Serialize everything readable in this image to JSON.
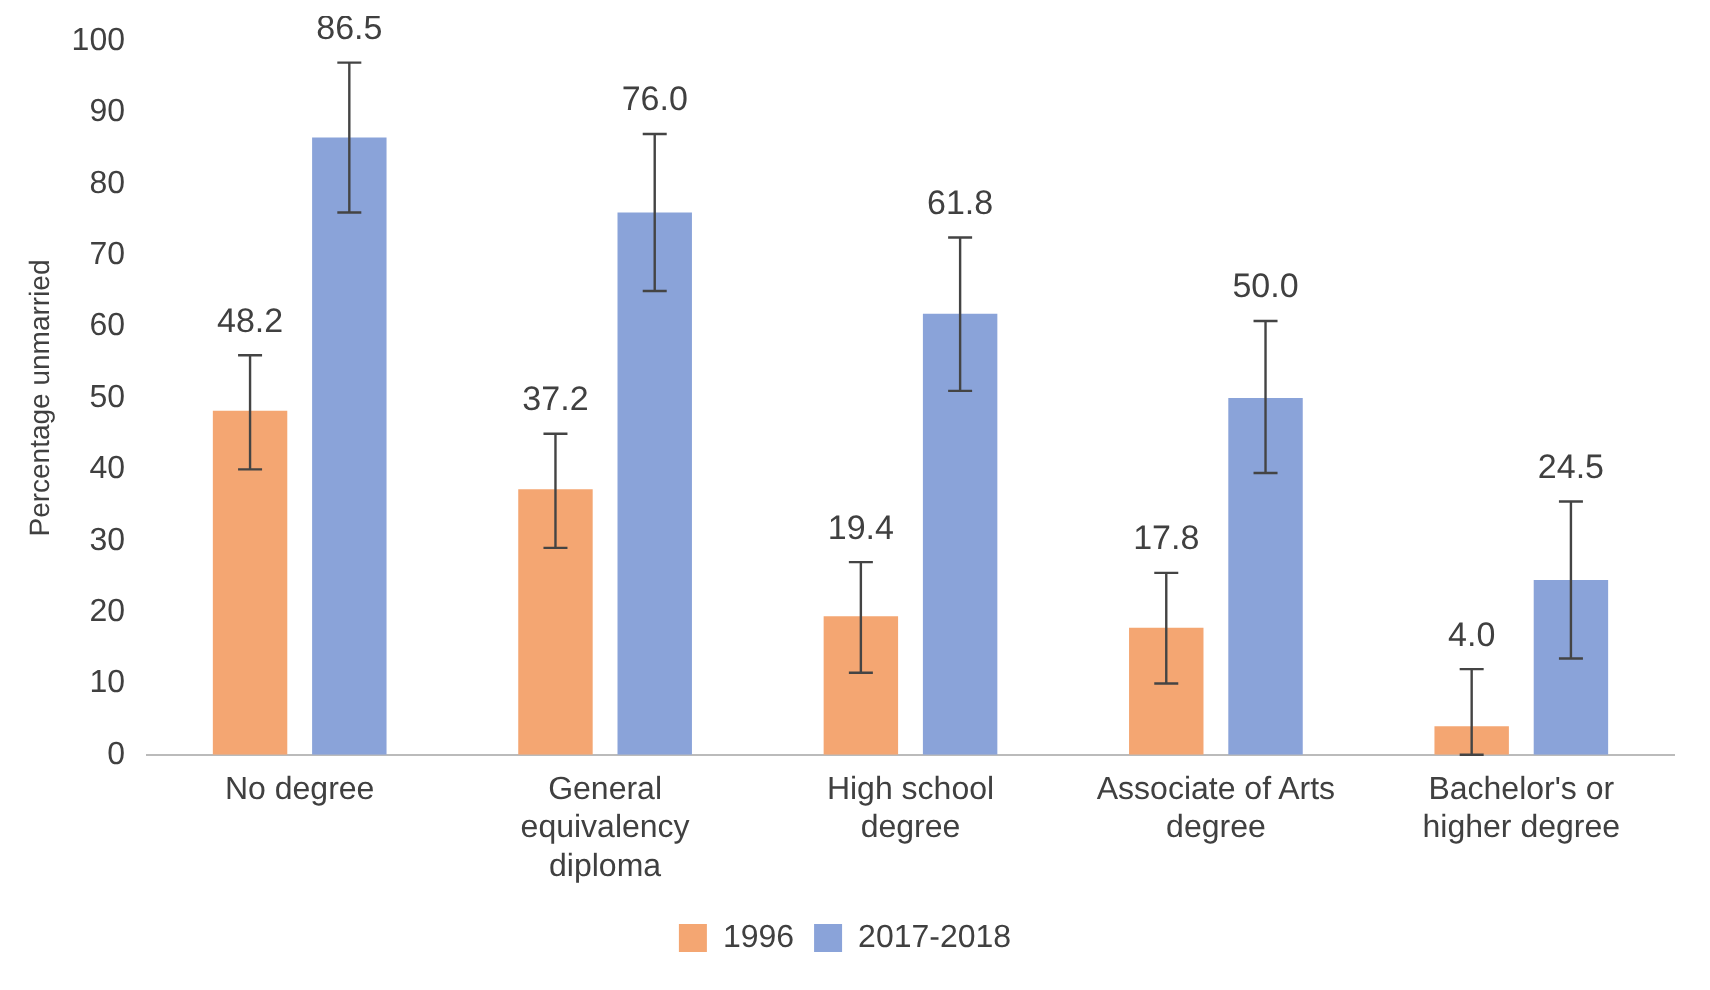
{
  "chart_data": {
    "type": "bar",
    "ylabel": "Percentage unmarried",
    "categories": [
      "No degree",
      "General equivalency diploma",
      "High school degree",
      "Associate of Arts degree",
      "Bachelor's or higher degree"
    ],
    "series": [
      {
        "name": "1996",
        "color": "#f4a672",
        "values": [
          48.2,
          37.2,
          19.4,
          17.8,
          4.0
        ],
        "value_labels": [
          "48.2",
          "37.2",
          "19.4",
          "17.8",
          "4.0"
        ],
        "errors": [
          [
            40,
            56
          ],
          [
            29,
            45
          ],
          [
            11.5,
            27
          ],
          [
            10,
            25.5
          ],
          [
            0,
            12
          ]
        ]
      },
      {
        "name": "2017-2018",
        "color": "#8aa3d9",
        "values": [
          86.5,
          76.0,
          61.8,
          50.0,
          24.5
        ],
        "value_labels": [
          "86.5",
          "76.0",
          "61.8",
          "50.0",
          "24.5"
        ],
        "errors": [
          [
            76,
            97
          ],
          [
            65,
            87
          ],
          [
            51,
            72.5
          ],
          [
            39.5,
            60.8
          ],
          [
            13.5,
            35.5
          ]
        ]
      }
    ],
    "ylim": [
      0,
      100
    ],
    "yticks": [
      0,
      10,
      20,
      30,
      40,
      50,
      60,
      70,
      80,
      90,
      100
    ],
    "grid": false,
    "legend": "bottom"
  }
}
